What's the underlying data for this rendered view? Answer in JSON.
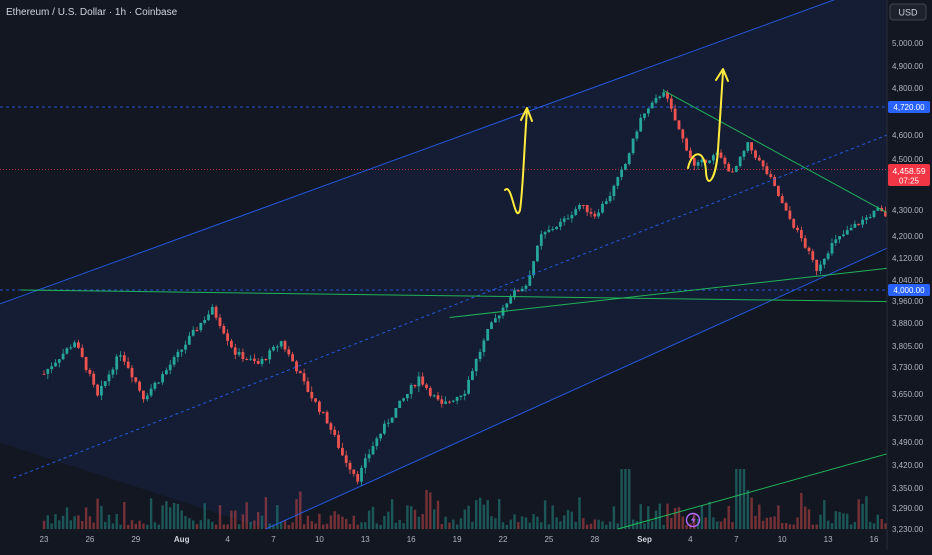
{
  "header": {
    "title": "Ethereum / U.S. Dollar · 1h · Coinbase"
  },
  "currency_button": {
    "label": "USD"
  },
  "colors": {
    "background": "#131722",
    "up": "#26a69a",
    "down": "#ef5350",
    "channel": "#2962ff",
    "trend": "#22c55e",
    "annotation": "#ffeb3b",
    "level_tag": "#2962ff",
    "price_tag": "#f23645"
  },
  "icons": {
    "replay_badge": "lightning-icon"
  },
  "chart_data": {
    "type": "candlestick",
    "symbol": "Ethereum / U.S. Dollar",
    "interval": "1h",
    "exchange": "Coinbase",
    "ylim": [
      3230,
      5080
    ],
    "y_ticks": [
      "5,000.00",
      "4,900.00",
      "4,800.00",
      "4,600.00",
      "4,500.00",
      "4,300.00",
      "4,200.00",
      "4,120.00",
      "4,040.00",
      "3,960.00",
      "3,880.00",
      "3,805.00",
      "3,730.00",
      "3,650.00",
      "3,570.00",
      "3,490.00",
      "3,420.00",
      "3,350.00",
      "3,290.00",
      "3,230.00"
    ],
    "x_ticks": [
      "23",
      "26",
      "29",
      "Aug",
      "4",
      "7",
      "10",
      "13",
      "16",
      "19",
      "22",
      "25",
      "28",
      "Sep",
      "4",
      "7",
      "10",
      "13",
      "16"
    ],
    "price_levels": [
      {
        "label": "4,720.00",
        "value": 4720,
        "style": "dashed"
      },
      {
        "label": "4,000.00",
        "value": 4000,
        "style": "dashed"
      }
    ],
    "last_price": {
      "label": "4,458.59",
      "countdown": "07:25",
      "value": 4458.59
    },
    "price_path": [
      [
        0,
        3710
      ],
      [
        2,
        3820
      ],
      [
        3.5,
        3640
      ],
      [
        5,
        3780
      ],
      [
        6.5,
        3640
      ],
      [
        8,
        3720
      ],
      [
        9.5,
        3830
      ],
      [
        11,
        3930
      ],
      [
        12.5,
        3780
      ],
      [
        14,
        3740
      ],
      [
        15.5,
        3820
      ],
      [
        17,
        3680
      ],
      [
        18.5,
        3560
      ],
      [
        19.5,
        3450
      ],
      [
        20.5,
        3380
      ],
      [
        21.5,
        3480
      ],
      [
        23,
        3600
      ],
      [
        24.5,
        3700
      ],
      [
        26,
        3610
      ],
      [
        27.5,
        3660
      ],
      [
        29,
        3850
      ],
      [
        30.5,
        3980
      ],
      [
        31.5,
        4020
      ],
      [
        32.5,
        4200
      ],
      [
        34,
        4260
      ],
      [
        35,
        4320
      ],
      [
        36,
        4280
      ],
      [
        37,
        4360
      ],
      [
        38,
        4480
      ],
      [
        39,
        4670
      ],
      [
        40.5,
        4790
      ],
      [
        41.5,
        4620
      ],
      [
        42.5,
        4470
      ],
      [
        44,
        4520
      ],
      [
        45,
        4440
      ],
      [
        46,
        4560
      ],
      [
        47.5,
        4420
      ],
      [
        48.5,
        4290
      ],
      [
        49.5,
        4190
      ],
      [
        50.5,
        4080
      ],
      [
        51.5,
        4170
      ],
      [
        53,
        4240
      ],
      [
        54.5,
        4300
      ],
      [
        55.5,
        4260
      ],
      [
        56,
        4360
      ],
      [
        56.5,
        4880
      ],
      [
        57.5,
        4790
      ],
      [
        58.5,
        4850
      ],
      [
        59.5,
        4720
      ],
      [
        60.5,
        4600
      ],
      [
        61.5,
        4380
      ],
      [
        62.5,
        4540
      ],
      [
        63.5,
        4560
      ],
      [
        64.5,
        4500
      ],
      [
        65.5,
        4440
      ],
      [
        66.5,
        4380
      ],
      [
        67.5,
        4320
      ],
      [
        68.5,
        4370
      ],
      [
        69.5,
        4460
      ],
      [
        70.5,
        4420
      ],
      [
        71.5,
        4360
      ],
      [
        72.5,
        4300
      ],
      [
        73.5,
        4250
      ],
      [
        74.5,
        4300
      ],
      [
        75,
        4360
      ],
      [
        75.5,
        4440
      ],
      [
        76,
        4458.59
      ]
    ],
    "trendlines": [
      {
        "name": "channel-upper",
        "points": [
          [
            -16,
            3700
          ],
          [
            56,
            5300
          ]
        ]
      },
      {
        "name": "channel-lower",
        "points": [
          [
            14.5,
            3230
          ],
          [
            68,
            4500
          ]
        ]
      },
      {
        "name": "channel-midline",
        "points": [
          [
            -2,
            3380
          ],
          [
            68.5,
            4950
          ]
        ]
      },
      {
        "name": "wedge-1-upper",
        "points": [
          [
            40.5,
            4790
          ],
          [
            60.5,
            4120
          ]
        ]
      },
      {
        "name": "wedge-2-upper",
        "points": [
          [
            57,
            4890
          ],
          [
            84,
            4260
          ]
        ]
      },
      {
        "name": "rising-support",
        "points": [
          [
            26.5,
            3900
          ],
          [
            93.5,
            4330
          ]
        ]
      },
      {
        "name": "horizontal-support",
        "points": [
          [
            -1.5,
            4000
          ],
          [
            99,
            3925
          ]
        ]
      },
      {
        "name": "long-diagonal",
        "points": [
          [
            37.5,
            3230
          ],
          [
            99,
            4090
          ]
        ]
      }
    ],
    "grid": false,
    "legend": "none"
  }
}
